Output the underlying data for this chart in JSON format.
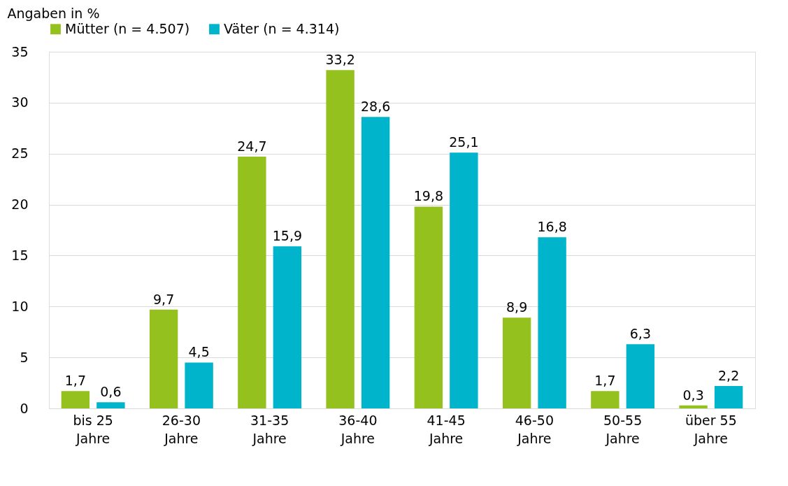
{
  "chart_data": {
    "type": "bar",
    "ylabel": "Angaben in %",
    "categories": [
      "bis 25 Jahre",
      "26-30 Jahre",
      "31-35 Jahre",
      "36-40 Jahre",
      "41-45 Jahre",
      "46-50 Jahre",
      "50-55 Jahre",
      "über 55 Jahre"
    ],
    "series": [
      {
        "name": "Mütter (n = 4.507)",
        "color": "#95c11f",
        "values": [
          1.7,
          9.7,
          24.7,
          33.2,
          19.8,
          8.9,
          1.7,
          0.3
        ],
        "value_labels": [
          "1,7",
          "9,7",
          "24,7",
          "33,2",
          "19,8",
          "8,9",
          "1,7",
          "0,3"
        ]
      },
      {
        "name": "Väter (n = 4.314)",
        "color": "#00b4cc",
        "values": [
          0.6,
          4.5,
          15.9,
          28.6,
          25.1,
          16.8,
          6.3,
          2.2
        ],
        "value_labels": [
          "0,6",
          "4,5",
          "15,9",
          "28,6",
          "25,1",
          "16,8",
          "6,3",
          "2,2"
        ]
      }
    ],
    "ylim": [
      0,
      35
    ],
    "yticks": [
      0,
      5,
      10,
      15,
      20,
      25,
      30,
      35
    ],
    "grid": "y",
    "legend": "top"
  }
}
